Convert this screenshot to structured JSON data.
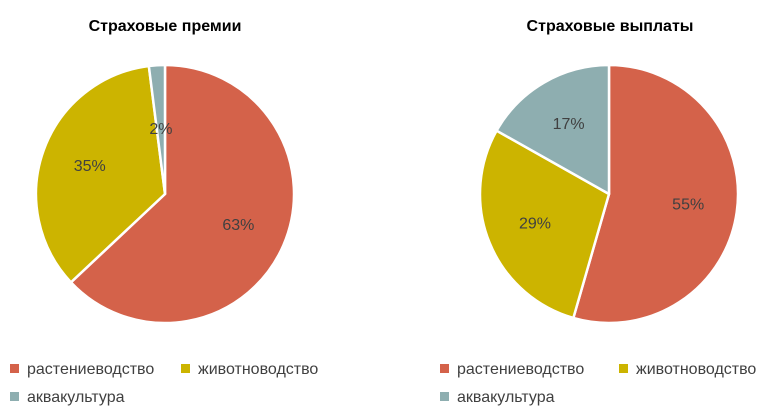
{
  "colors": {
    "crop": "#d4624a",
    "livestock": "#ccb400",
    "aqua": "#8eaeb0",
    "slice_border": "#ffffff"
  },
  "chart_data": [
    {
      "type": "pie",
      "title": "Страховые премии",
      "categories": [
        "растениеводство",
        "животноводство",
        "аквакультура"
      ],
      "values": [
        63,
        35,
        2
      ],
      "labels": [
        "63%",
        "35%",
        "2%"
      ],
      "start_angle_deg": 0,
      "direction": "clockwise",
      "legend": "bottom"
    },
    {
      "type": "pie",
      "title": "Страховые выплаты",
      "categories": [
        "растениеводство",
        "животноводство",
        "аквакультура"
      ],
      "values": [
        55,
        29,
        17
      ],
      "labels": [
        "55%",
        "29%",
        "17%"
      ],
      "start_angle_deg": 0,
      "direction": "clockwise",
      "legend": "bottom"
    }
  ]
}
